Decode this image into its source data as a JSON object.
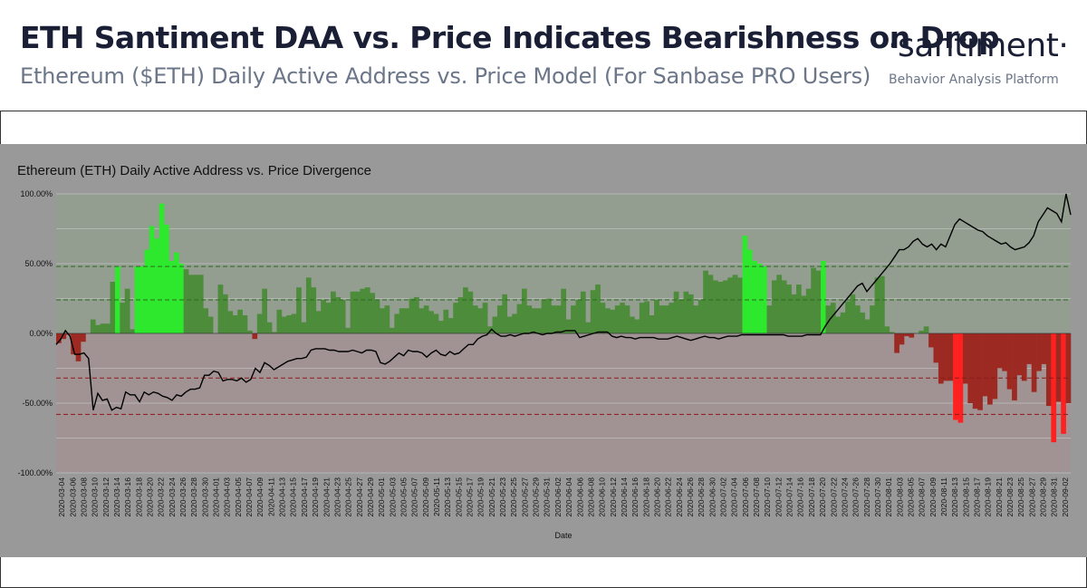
{
  "header": {
    "title": "ETH Santiment DAA vs. Price Indicates Bearishness on Drop",
    "subtitle": "Ethereum ($ETH) Daily Active Address vs. Price Model (For Sanbase PRO Users)"
  },
  "brand": {
    "name": "·santiment·",
    "tagline": "Behavior Analysis Platform"
  },
  "colors": {
    "bright_green": "#2ee82e",
    "dark_green": "#4d8c3a",
    "bright_red": "#ff2020",
    "dark_red": "#9c2a22",
    "price_line": "#000000",
    "plot_background": "#999999"
  },
  "chart_data": {
    "type": "bar",
    "title": "Ethereum (ETH) Daily Active Address vs. Price Divergence",
    "xlabel": "Date",
    "ylabel": "",
    "ylim": [
      -100,
      100
    ],
    "y_ticks": [
      "100.00%",
      "50.00%",
      "0.00%",
      "-50.00%",
      "-100.00%"
    ],
    "y_tick_values": [
      100,
      50,
      0,
      -50,
      -100
    ],
    "grid": true,
    "reference_lines": [
      {
        "value": 48,
        "color": "green"
      },
      {
        "value": 24,
        "color": "green"
      },
      {
        "value": -32,
        "color": "red"
      },
      {
        "value": -58,
        "color": "red"
      }
    ],
    "x_tick_labels": [
      "2020-03-04",
      "2020-03-06",
      "2020-03-08",
      "2020-03-10",
      "2020-03-12",
      "2020-03-14",
      "2020-03-16",
      "2020-03-18",
      "2020-03-20",
      "2020-03-22",
      "2020-03-24",
      "2020-03-26",
      "2020-03-28",
      "2020-03-30",
      "2020-04-01",
      "2020-04-03",
      "2020-04-05",
      "2020-04-07",
      "2020-04-09",
      "2020-04-11",
      "2020-04-13",
      "2020-04-15",
      "2020-04-17",
      "2020-04-19",
      "2020-04-21",
      "2020-04-23",
      "2020-04-25",
      "2020-04-27",
      "2020-04-29",
      "2020-05-01",
      "2020-05-03",
      "2020-05-05",
      "2020-05-07",
      "2020-05-09",
      "2020-05-11",
      "2020-05-13",
      "2020-05-15",
      "2020-05-17",
      "2020-05-19",
      "2020-05-21",
      "2020-05-23",
      "2020-05-25",
      "2020-05-27",
      "2020-05-29",
      "2020-05-31",
      "2020-06-02",
      "2020-06-04",
      "2020-06-06",
      "2020-06-08",
      "2020-06-10",
      "2020-06-12",
      "2020-06-14",
      "2020-06-16",
      "2020-06-18",
      "2020-06-20",
      "2020-06-22",
      "2020-06-24",
      "2020-06-26",
      "2020-06-28",
      "2020-06-30",
      "2020-07-02",
      "2020-07-04",
      "2020-07-06",
      "2020-07-08",
      "2020-07-10",
      "2020-07-12",
      "2020-07-14",
      "2020-07-16",
      "2020-07-18",
      "2020-07-20",
      "2020-07-22",
      "2020-07-24",
      "2020-07-26",
      "2020-07-28",
      "2020-07-30",
      "2020-08-01",
      "2020-08-03",
      "2020-08-05",
      "2020-08-07",
      "2020-08-09",
      "2020-08-11",
      "2020-08-13",
      "2020-08-15",
      "2020-08-17",
      "2020-08-19",
      "2020-08-21",
      "2020-08-23",
      "2020-08-25",
      "2020-08-27",
      "2020-08-29",
      "2020-08-31",
      "2020-09-02"
    ],
    "divergence_values": [
      -7,
      -4,
      -1,
      -15,
      -20,
      -6,
      0,
      10,
      6,
      7,
      7,
      37,
      48,
      22,
      32,
      3,
      48,
      48,
      60,
      77,
      68,
      93,
      78,
      52,
      58,
      50,
      46,
      42,
      42,
      42,
      18,
      12,
      0,
      35,
      28,
      16,
      13,
      17,
      13,
      2,
      -4,
      14,
      32,
      8,
      1,
      17,
      12,
      13,
      14,
      33,
      8,
      40,
      33,
      16,
      24,
      22,
      30,
      26,
      24,
      4,
      30,
      30,
      32,
      33,
      29,
      24,
      18,
      20,
      4,
      14,
      18,
      18,
      25,
      26,
      18,
      20,
      16,
      14,
      9,
      17,
      11,
      22,
      26,
      33,
      30,
      20,
      18,
      22,
      5,
      12,
      20,
      28,
      12,
      14,
      21,
      32,
      20,
      18,
      18,
      24,
      25,
      20,
      20,
      32,
      10,
      20,
      24,
      30,
      8,
      31,
      35,
      22,
      18,
      17,
      20,
      22,
      20,
      12,
      10,
      22,
      23,
      13,
      24,
      20,
      20,
      22,
      30,
      24,
      30,
      28,
      20,
      24,
      45,
      42,
      38,
      37,
      38,
      40,
      42,
      40,
      70,
      60,
      52,
      50,
      48,
      20,
      38,
      42,
      38,
      35,
      28,
      35,
      27,
      32,
      47,
      45,
      52,
      20,
      22,
      12,
      15,
      23,
      28,
      20,
      15,
      10,
      20,
      40,
      41,
      5,
      1,
      -14,
      -8,
      -2,
      -3,
      0,
      2,
      5,
      -10,
      -21,
      -36,
      -34,
      -34,
      -62,
      -64,
      -36,
      -50,
      -54,
      -55,
      -45,
      -51,
      -47,
      -25,
      -27,
      -40,
      -48,
      -30,
      -34,
      -22,
      -42,
      -27,
      -22,
      -52,
      -78,
      -49,
      -72,
      -50
    ],
    "price_values": [
      -8,
      -4,
      2,
      -2,
      -15,
      -15,
      -14,
      -18,
      -55,
      -43,
      -48,
      -47,
      -55,
      -53,
      -54,
      -42,
      -44,
      -44,
      -49,
      -42,
      -44,
      -42,
      -43,
      -45,
      -46,
      -48,
      -44,
      -45,
      -42,
      -40,
      -40,
      -39,
      -30,
      -30,
      -27,
      -28,
      -34,
      -33,
      -33,
      -34,
      -32,
      -35,
      -33,
      -25,
      -28,
      -21,
      -23,
      -26,
      -24,
      -22,
      -20,
      -19,
      -18,
      -18,
      -17,
      -12,
      -11,
      -11,
      -11,
      -12,
      -12,
      -13,
      -13,
      -13,
      -12,
      -13,
      -14,
      -12,
      -12,
      -13,
      -21,
      -22,
      -20,
      -17,
      -14,
      -16,
      -12,
      -13,
      -13,
      -14,
      -17,
      -14,
      -12,
      -15,
      -16,
      -13,
      -15,
      -14,
      -11,
      -8,
      -8,
      -4,
      -2,
      -1,
      3,
      0,
      -2,
      -2,
      -1,
      -2,
      -1,
      0,
      0,
      1,
      0,
      -1,
      0,
      0,
      1,
      1,
      2,
      2,
      2,
      -3,
      -2,
      -1,
      0,
      1,
      1,
      1,
      -2,
      -3,
      -2,
      -3,
      -3,
      -4,
      -3,
      -3,
      -3,
      -3,
      -4,
      -4,
      -4,
      -3,
      -2,
      -3,
      -4,
      -5,
      -4,
      -3,
      -2,
      -3,
      -3,
      -4,
      -3,
      -2,
      -2,
      -2,
      -1,
      -1,
      -1,
      -1,
      -1,
      -1,
      -1,
      -1,
      -1,
      -1,
      -2,
      -2,
      -2,
      -2,
      -1,
      -1,
      -1,
      -1,
      5,
      10,
      14,
      18,
      22,
      26,
      30,
      34,
      36,
      30,
      34,
      38,
      42,
      46,
      50,
      55,
      60,
      60,
      62,
      66,
      68,
      64,
      62,
      64,
      60,
      64,
      62,
      70,
      78,
      82,
      80,
      78,
      76,
      74,
      73,
      70,
      68,
      66,
      64,
      65,
      62,
      60,
      61,
      62,
      65,
      70,
      80,
      85,
      90,
      88,
      86,
      80,
      100,
      85
    ]
  }
}
